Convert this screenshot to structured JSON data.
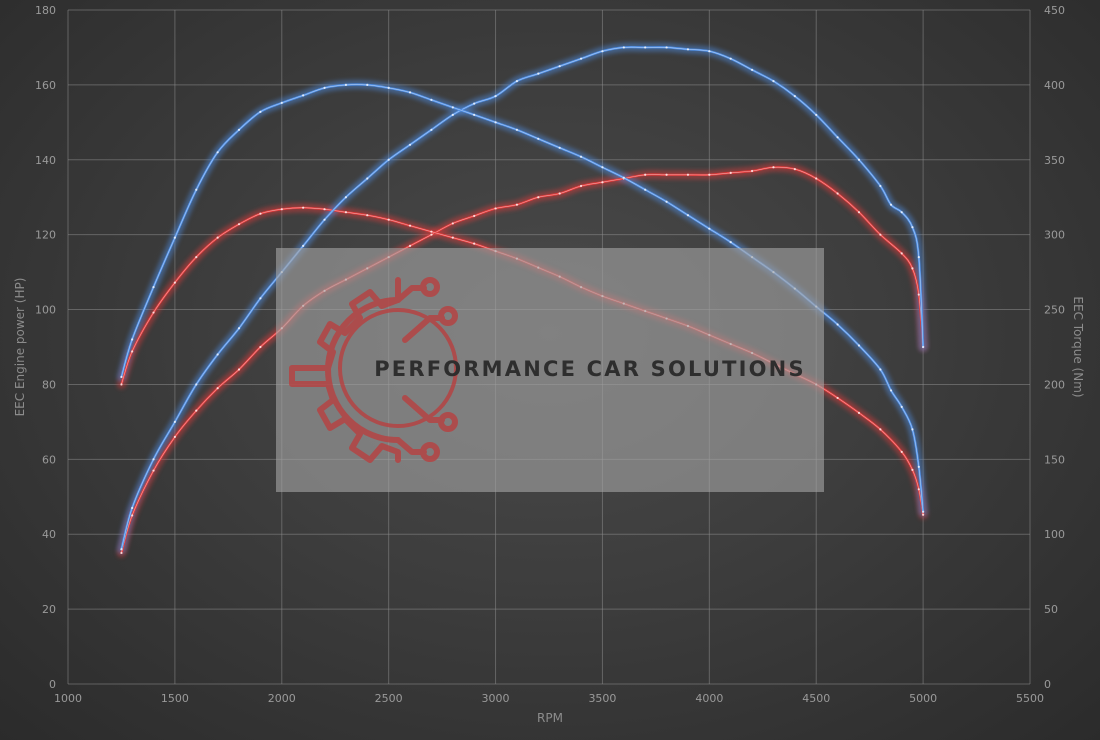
{
  "chart_data": {
    "type": "line",
    "title": "",
    "xlabel": "RPM",
    "ylabel": "EEC Engine power (HP)",
    "y2label": "EEC Torque (Nm)",
    "xlim": [
      1000,
      5500
    ],
    "ylim": [
      0,
      180
    ],
    "y2lim": [
      0,
      450
    ],
    "x_ticks": [
      1000,
      1500,
      2000,
      2500,
      3000,
      3500,
      4000,
      4500,
      5000,
      5500
    ],
    "y_ticks": [
      0,
      20,
      40,
      60,
      80,
      100,
      120,
      140,
      160,
      180
    ],
    "y2_ticks": [
      0,
      50,
      100,
      150,
      200,
      250,
      300,
      350,
      400,
      450
    ],
    "grid": true,
    "legend": "none",
    "series": [
      {
        "color": "#e23a3a",
        "axis": "left",
        "points": [
          [
            1250,
            35
          ],
          [
            1300,
            45
          ],
          [
            1400,
            57
          ],
          [
            1500,
            66
          ],
          [
            1600,
            73
          ],
          [
            1700,
            79
          ],
          [
            1800,
            84
          ],
          [
            1900,
            90
          ],
          [
            2000,
            95
          ],
          [
            2100,
            101
          ],
          [
            2200,
            105
          ],
          [
            2300,
            108
          ],
          [
            2400,
            111
          ],
          [
            2500,
            114
          ],
          [
            2600,
            117
          ],
          [
            2700,
            120
          ],
          [
            2800,
            123
          ],
          [
            2900,
            125
          ],
          [
            3000,
            127
          ],
          [
            3100,
            128
          ],
          [
            3200,
            130
          ],
          [
            3300,
            131
          ],
          [
            3400,
            133
          ],
          [
            3500,
            134
          ],
          [
            3600,
            135
          ],
          [
            3700,
            136
          ],
          [
            3800,
            136
          ],
          [
            3900,
            136
          ],
          [
            4000,
            136
          ],
          [
            4100,
            136.5
          ],
          [
            4200,
            137
          ],
          [
            4300,
            138
          ],
          [
            4400,
            137.5
          ],
          [
            4500,
            135
          ],
          [
            4600,
            131
          ],
          [
            4700,
            126
          ],
          [
            4800,
            120
          ],
          [
            4900,
            115
          ],
          [
            4950,
            111
          ],
          [
            4980,
            104
          ],
          [
            5000,
            90
          ]
        ]
      },
      {
        "color": "#e23a3a",
        "axis": "right",
        "points": [
          [
            1250,
            200
          ],
          [
            1300,
            222
          ],
          [
            1400,
            248
          ],
          [
            1500,
            268
          ],
          [
            1600,
            285
          ],
          [
            1700,
            298
          ],
          [
            1800,
            307
          ],
          [
            1900,
            314
          ],
          [
            2000,
            317
          ],
          [
            2100,
            318
          ],
          [
            2200,
            317
          ],
          [
            2300,
            315
          ],
          [
            2400,
            313
          ],
          [
            2500,
            310
          ],
          [
            2600,
            306
          ],
          [
            2700,
            302
          ],
          [
            2800,
            298
          ],
          [
            2900,
            294
          ],
          [
            3000,
            289
          ],
          [
            3100,
            284
          ],
          [
            3200,
            278
          ],
          [
            3300,
            272
          ],
          [
            3400,
            265
          ],
          [
            3500,
            259
          ],
          [
            3600,
            254
          ],
          [
            3700,
            249
          ],
          [
            3800,
            244
          ],
          [
            3900,
            239
          ],
          [
            4000,
            233
          ],
          [
            4100,
            227
          ],
          [
            4200,
            221
          ],
          [
            4300,
            214
          ],
          [
            4400,
            207
          ],
          [
            4500,
            200
          ],
          [
            4600,
            191
          ],
          [
            4700,
            181
          ],
          [
            4800,
            170
          ],
          [
            4900,
            155
          ],
          [
            4950,
            143
          ],
          [
            4980,
            130
          ],
          [
            5000,
            113
          ]
        ]
      },
      {
        "color": "#4f8fe6",
        "axis": "left",
        "points": [
          [
            1250,
            36
          ],
          [
            1300,
            47
          ],
          [
            1400,
            60
          ],
          [
            1500,
            70
          ],
          [
            1600,
            80
          ],
          [
            1700,
            88
          ],
          [
            1800,
            95
          ],
          [
            1900,
            103
          ],
          [
            2000,
            110
          ],
          [
            2100,
            117
          ],
          [
            2200,
            124
          ],
          [
            2300,
            130
          ],
          [
            2400,
            135
          ],
          [
            2500,
            140
          ],
          [
            2600,
            144
          ],
          [
            2700,
            148
          ],
          [
            2800,
            152
          ],
          [
            2900,
            155
          ],
          [
            3000,
            157
          ],
          [
            3100,
            161
          ],
          [
            3200,
            163
          ],
          [
            3300,
            165
          ],
          [
            3400,
            167
          ],
          [
            3500,
            169
          ],
          [
            3600,
            170
          ],
          [
            3700,
            170
          ],
          [
            3800,
            170
          ],
          [
            3900,
            169.5
          ],
          [
            4000,
            169
          ],
          [
            4100,
            167
          ],
          [
            4200,
            164
          ],
          [
            4300,
            161
          ],
          [
            4400,
            157
          ],
          [
            4500,
            152
          ],
          [
            4600,
            146
          ],
          [
            4700,
            140
          ],
          [
            4800,
            133
          ],
          [
            4850,
            128
          ],
          [
            4900,
            126
          ],
          [
            4950,
            122
          ],
          [
            4980,
            114
          ],
          [
            5000,
            90
          ]
        ]
      },
      {
        "color": "#4f8fe6",
        "axis": "right",
        "points": [
          [
            1250,
            205
          ],
          [
            1300,
            230
          ],
          [
            1400,
            265
          ],
          [
            1500,
            298
          ],
          [
            1600,
            330
          ],
          [
            1700,
            355
          ],
          [
            1800,
            370
          ],
          [
            1900,
            382
          ],
          [
            2000,
            388
          ],
          [
            2100,
            393
          ],
          [
            2200,
            398
          ],
          [
            2300,
            400
          ],
          [
            2400,
            400
          ],
          [
            2500,
            398
          ],
          [
            2600,
            395
          ],
          [
            2700,
            390
          ],
          [
            2800,
            385
          ],
          [
            2900,
            380
          ],
          [
            3000,
            375
          ],
          [
            3100,
            370
          ],
          [
            3200,
            364
          ],
          [
            3300,
            358
          ],
          [
            3400,
            352
          ],
          [
            3500,
            345
          ],
          [
            3600,
            338
          ],
          [
            3700,
            330
          ],
          [
            3800,
            322
          ],
          [
            3900,
            313
          ],
          [
            4000,
            304
          ],
          [
            4100,
            295
          ],
          [
            4200,
            285
          ],
          [
            4300,
            275
          ],
          [
            4400,
            264
          ],
          [
            4500,
            252
          ],
          [
            4600,
            240
          ],
          [
            4700,
            226
          ],
          [
            4800,
            210
          ],
          [
            4850,
            196
          ],
          [
            4900,
            185
          ],
          [
            4950,
            170
          ],
          [
            4980,
            145
          ],
          [
            5000,
            115
          ]
        ]
      }
    ]
  },
  "watermark": {
    "brand_text": "PERFORMANCE CAR SOLUTIONS",
    "logo": "gear-circuit-logo",
    "logo_color": "#b84040"
  }
}
